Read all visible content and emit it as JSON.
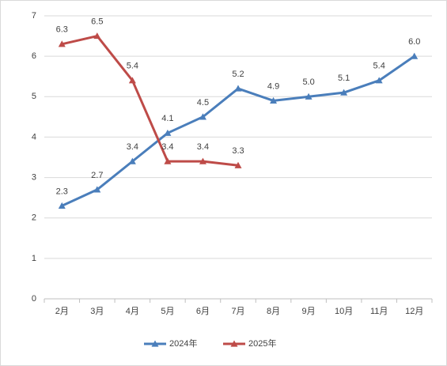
{
  "chart_data": {
    "type": "line",
    "categories": [
      "2月",
      "3月",
      "4月",
      "5月",
      "6月",
      "7月",
      "8月",
      "9月",
      "10月",
      "11月",
      "12月"
    ],
    "series": [
      {
        "name": "2024年",
        "color": "#4a7ebb",
        "values": [
          2.3,
          2.7,
          3.4,
          4.1,
          4.5,
          5.2,
          4.9,
          5.0,
          5.1,
          5.4,
          6.0
        ],
        "value_labels": [
          "2.3",
          "2.7",
          "3.4",
          "4.1",
          "4.5",
          "5.2",
          "4.9",
          "5.0",
          "5.1",
          "5.4",
          "6.0"
        ]
      },
      {
        "name": "2025年",
        "color": "#be4b48",
        "values": [
          6.3,
          6.5,
          5.4,
          3.4,
          3.4,
          3.3,
          null,
          null,
          null,
          null,
          null
        ],
        "value_labels": [
          "6.3",
          "6.5",
          "5.4",
          "3.4",
          "3.4",
          "3.3",
          null,
          null,
          null,
          null,
          null
        ]
      }
    ],
    "ylim": [
      0,
      7
    ],
    "yticks": [
      0,
      1,
      2,
      3,
      4,
      5,
      6,
      7
    ],
    "grid": true,
    "legend": "bottom"
  }
}
